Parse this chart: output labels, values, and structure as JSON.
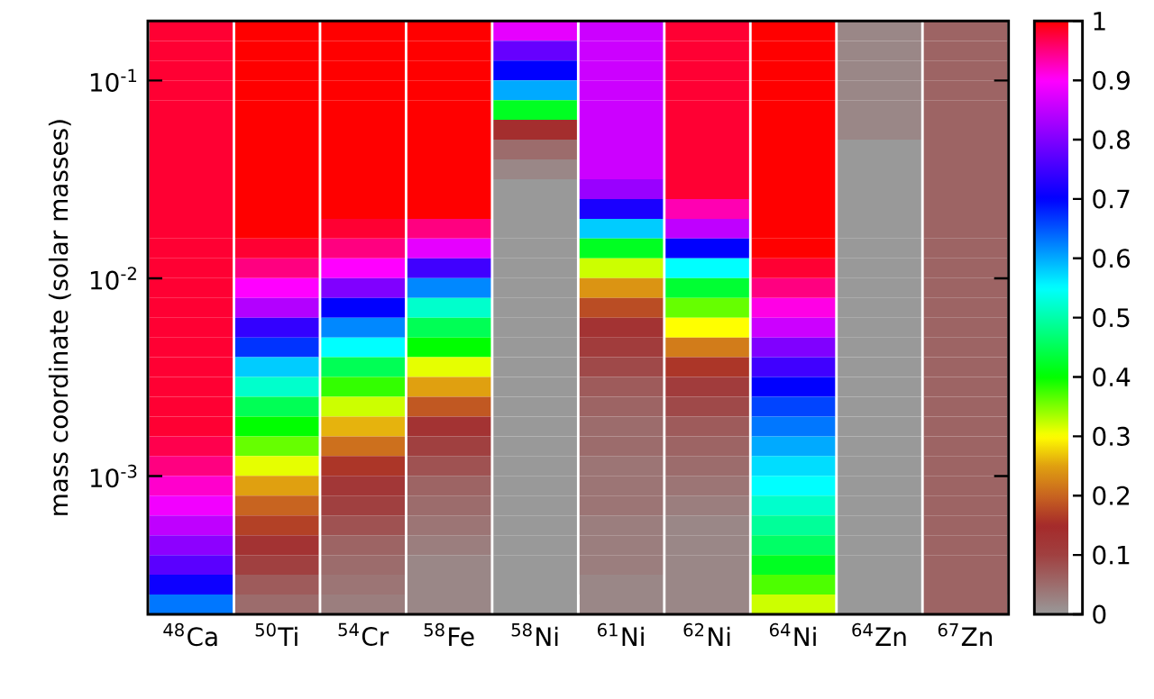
{
  "chart_data": {
    "type": "heatmap",
    "ylabel": "mass coordinate (solar masses)",
    "categories": [
      "$^{48}$Ca",
      "$^{50}$Ti",
      "$^{54}$Cr",
      "$^{58}$Fe",
      "$^{58}$Ni",
      "$^{61}$Ni",
      "$^{62}$Ni",
      "$^{64}$Ni",
      "$^{64}$Zn",
      "$^{67}$Zn"
    ],
    "ylim": [
      0.0002,
      0.2
    ],
    "log": "y",
    "yticks": [
      {
        "value": 0.001,
        "label": "10$^{-3}$"
      },
      {
        "value": 0.01,
        "label": "10$^{-2}$"
      },
      {
        "value": 0.1,
        "label": "10$^{-1}$"
      }
    ],
    "clim": [
      0,
      1
    ],
    "cticks": [
      0,
      0.1,
      0.2,
      0.3,
      0.4,
      0.5,
      0.6,
      0.7,
      0.8,
      0.9,
      1
    ],
    "cells": [
      [
        0.98,
        1,
        1,
        1,
        0.88,
        0.86,
        0.98,
        1,
        0.02,
        0.06
      ],
      [
        0.98,
        1,
        1,
        1,
        0.78,
        0.86,
        0.98,
        1,
        0.02,
        0.06
      ],
      [
        0.98,
        1,
        1,
        1,
        0.7,
        0.86,
        0.98,
        1,
        0.02,
        0.06
      ],
      [
        0.98,
        1,
        1,
        1,
        0.6,
        0.86,
        0.98,
        1,
        0.02,
        0.06
      ],
      [
        0.98,
        1,
        1,
        1,
        0.42,
        0.86,
        0.98,
        1,
        0.02,
        0.06
      ],
      [
        0.98,
        1,
        1,
        1,
        0.14,
        0.86,
        0.98,
        1,
        0.02,
        0.06
      ],
      [
        0.98,
        1,
        1,
        1,
        0.05,
        0.86,
        0.98,
        1,
        0,
        0.06
      ],
      [
        0.98,
        1,
        1,
        1,
        0.02,
        0.86,
        0.98,
        1,
        0,
        0.06
      ],
      [
        0.98,
        1,
        1,
        1,
        0,
        0.82,
        0.98,
        1,
        0,
        0.06
      ],
      [
        0.98,
        1,
        1,
        1,
        0,
        0.72,
        0.93,
        1,
        0,
        0.06
      ],
      [
        0.98,
        1,
        0.98,
        0.95,
        0,
        0.58,
        0.85,
        1,
        0,
        0.06
      ],
      [
        0.98,
        0.98,
        0.95,
        0.88,
        0,
        0.42,
        0.7,
        1,
        0,
        0.06
      ],
      [
        0.98,
        0.95,
        0.9,
        0.75,
        0,
        0.32,
        0.55,
        0.98,
        0,
        0.06
      ],
      [
        0.98,
        0.9,
        0.8,
        0.62,
        0,
        0.24,
        0.43,
        0.95,
        0,
        0.06
      ],
      [
        0.98,
        0.84,
        0.7,
        0.52,
        0,
        0.18,
        0.36,
        0.91,
        0,
        0.06
      ],
      [
        0.98,
        0.74,
        0.62,
        0.45,
        0,
        0.13,
        0.3,
        0.86,
        0,
        0.06
      ],
      [
        0.98,
        0.67,
        0.55,
        0.4,
        0,
        0.11,
        0.22,
        0.8,
        0,
        0.06
      ],
      [
        0.98,
        0.58,
        0.45,
        0.31,
        0,
        0.09,
        0.16,
        0.75,
        0,
        0.06
      ],
      [
        0.98,
        0.52,
        0.38,
        0.25,
        0,
        0.07,
        0.11,
        0.7,
        0,
        0.06
      ],
      [
        0.98,
        0.45,
        0.32,
        0.19,
        0,
        0.06,
        0.09,
        0.66,
        0,
        0.06
      ],
      [
        0.98,
        0.4,
        0.26,
        0.13,
        0,
        0.05,
        0.07,
        0.63,
        0,
        0.06
      ],
      [
        0.97,
        0.36,
        0.21,
        0.1,
        0,
        0.05,
        0.06,
        0.6,
        0,
        0.06
      ],
      [
        0.95,
        0.31,
        0.16,
        0.08,
        0,
        0.04,
        0.05,
        0.57,
        0,
        0.06
      ],
      [
        0.92,
        0.25,
        0.12,
        0.06,
        0,
        0.04,
        0.04,
        0.55,
        0,
        0.06
      ],
      [
        0.89,
        0.2,
        0.1,
        0.05,
        0,
        0.04,
        0.03,
        0.52,
        0,
        0.06
      ],
      [
        0.85,
        0.17,
        0.08,
        0.04,
        0,
        0.03,
        0.02,
        0.49,
        0,
        0.06
      ],
      [
        0.81,
        0.13,
        0.06,
        0.03,
        0,
        0.03,
        0.02,
        0.46,
        0,
        0.06
      ],
      [
        0.77,
        0.1,
        0.05,
        0.02,
        0,
        0.03,
        0.02,
        0.42,
        0,
        0.06
      ],
      [
        0.71,
        0.07,
        0.04,
        0.02,
        0,
        0.02,
        0.02,
        0.37,
        0,
        0.06
      ],
      [
        0.63,
        0.05,
        0.03,
        0.02,
        0,
        0.02,
        0.02,
        0.32,
        0,
        0.06
      ]
    ]
  }
}
